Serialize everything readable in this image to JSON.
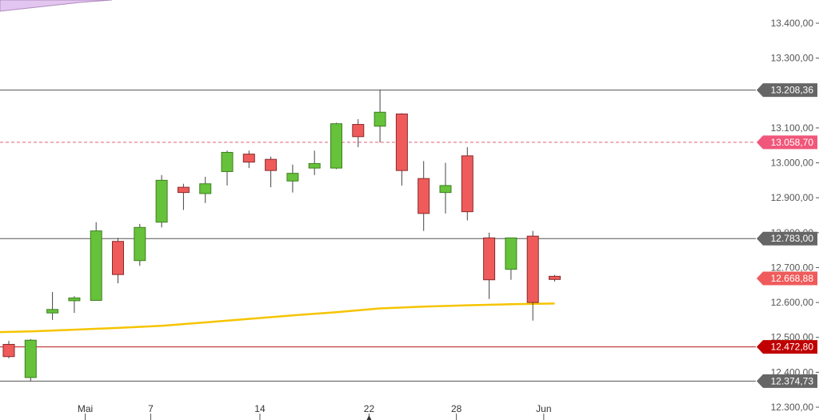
{
  "chart_data": {
    "type": "candlestick",
    "ylim": [
      12300,
      13430
    ],
    "y_ticks": [
      {
        "value": 13400,
        "label": "13.400,00"
      },
      {
        "value": 13300,
        "label": "13.300,00"
      },
      {
        "value": 13100,
        "label": "13.100,00"
      },
      {
        "value": 13000,
        "label": "13.000,00"
      },
      {
        "value": 12900,
        "label": "12.900,00"
      },
      {
        "value": 12800,
        "label": "12.800,00"
      },
      {
        "value": 12700,
        "label": "12.700,00"
      },
      {
        "value": 12600,
        "label": "12.600,00"
      },
      {
        "value": 12500,
        "label": "12.500,00"
      },
      {
        "value": 12400,
        "label": "12.400,00"
      },
      {
        "value": 12300,
        "label": "12.300,00"
      }
    ],
    "x_labels": [
      {
        "index": 3.5,
        "label": "Mai"
      },
      {
        "index": 6.5,
        "label": "7"
      },
      {
        "index": 11.5,
        "label": "14"
      },
      {
        "index": 16.5,
        "label": "22"
      },
      {
        "index": 20.5,
        "label": "28"
      },
      {
        "index": 24.5,
        "label": "Jun"
      }
    ],
    "candles": [
      {
        "open": 12480,
        "high": 12490,
        "low": 12440,
        "close": 12445
      },
      {
        "open": 12385,
        "high": 12495,
        "low": 12375,
        "close": 12492
      },
      {
        "open": 12570,
        "high": 12630,
        "low": 12550,
        "close": 12580
      },
      {
        "open": 12605,
        "high": 12618,
        "low": 12570,
        "close": 12613
      },
      {
        "open": 12606,
        "high": 12830,
        "low": 12605,
        "close": 12805
      },
      {
        "open": 12775,
        "high": 12785,
        "low": 12655,
        "close": 12680
      },
      {
        "open": 12720,
        "high": 12825,
        "low": 12705,
        "close": 12815
      },
      {
        "open": 12830,
        "high": 12965,
        "low": 12815,
        "close": 12950
      },
      {
        "open": 12930,
        "high": 12940,
        "low": 12865,
        "close": 12915
      },
      {
        "open": 12912,
        "high": 12960,
        "low": 12885,
        "close": 12940
      },
      {
        "open": 12975,
        "high": 13035,
        "low": 12935,
        "close": 13030
      },
      {
        "open": 13025,
        "high": 13035,
        "low": 12985,
        "close": 13002
      },
      {
        "open": 13010,
        "high": 13018,
        "low": 12930,
        "close": 12978
      },
      {
        "open": 12948,
        "high": 12995,
        "low": 12915,
        "close": 12970
      },
      {
        "open": 12985,
        "high": 13035,
        "low": 12965,
        "close": 12998
      },
      {
        "open": 12985,
        "high": 13115,
        "low": 12982,
        "close": 13112
      },
      {
        "open": 13110,
        "high": 13125,
        "low": 13045,
        "close": 13075
      },
      {
        "open": 13105,
        "high": 13210,
        "low": 13058,
        "close": 13145
      },
      {
        "open": 13140,
        "high": 13142,
        "low": 12935,
        "close": 12978
      },
      {
        "open": 12955,
        "high": 13005,
        "low": 12805,
        "close": 12855
      },
      {
        "open": 12915,
        "high": 13000,
        "low": 12855,
        "close": 12935
      },
      {
        "open": 13020,
        "high": 13045,
        "low": 12835,
        "close": 12860
      },
      {
        "open": 12785,
        "high": 12800,
        "low": 12610,
        "close": 12665
      },
      {
        "open": 12695,
        "high": 12785,
        "low": 12665,
        "close": 12785
      },
      {
        "open": 12790,
        "high": 12805,
        "low": 12548,
        "close": 12600
      },
      {
        "open": 12675,
        "high": 12679,
        "low": 12660,
        "close": 12666
      }
    ],
    "moving_average": {
      "color": "#f5c400",
      "points": [
        {
          "index": -0.5,
          "value": 12515
        },
        {
          "index": 1,
          "value": 12517
        },
        {
          "index": 3,
          "value": 12522
        },
        {
          "index": 5,
          "value": 12527
        },
        {
          "index": 7,
          "value": 12533
        },
        {
          "index": 9,
          "value": 12543
        },
        {
          "index": 11,
          "value": 12553
        },
        {
          "index": 13,
          "value": 12563
        },
        {
          "index": 15,
          "value": 12572
        },
        {
          "index": 17,
          "value": 12583
        },
        {
          "index": 19,
          "value": 12588
        },
        {
          "index": 21,
          "value": 12592
        },
        {
          "index": 23,
          "value": 12595
        },
        {
          "index": 25,
          "value": 12597
        }
      ]
    },
    "levels": [
      {
        "value": 13208.36,
        "label": "13.208,36",
        "line_color": "#555555",
        "line_style": "solid",
        "tag_bg": "#666666",
        "tag_fg": "#ffffff"
      },
      {
        "value": 13058.7,
        "label": "13.058,70",
        "line_color": "#e0607a",
        "line_style": "dashed",
        "tag_bg": "#f0577a",
        "tag_fg": "#ffffff"
      },
      {
        "value": 12783.0,
        "label": "12.783,00",
        "line_color": "#555555",
        "line_style": "solid",
        "tag_bg": "#666666",
        "tag_fg": "#ffffff"
      },
      {
        "value": 12668.88,
        "label": "12.668,88",
        "line_color": null,
        "line_style": "none",
        "tag_bg": "#ef5b5b",
        "tag_fg": "#ffffff"
      },
      {
        "value": 12472.8,
        "label": "12.472,80",
        "line_color": "#b81414",
        "line_style": "solid",
        "tag_bg": "#c00000",
        "tag_fg": "#ffffff"
      },
      {
        "value": 12374.73,
        "label": "12.374,73",
        "line_color": "#555555",
        "line_style": "solid",
        "tag_bg": "#666666",
        "tag_fg": "#ffffff"
      }
    ],
    "colors": {
      "up_fill": "#66c23a",
      "up_border": "#3f7f22",
      "down_fill": "#ef5b5b",
      "down_border": "#8a2a2a",
      "wick": "#444444",
      "grid_tick": "#555555",
      "overlay_band": "#e3c6ef"
    }
  }
}
